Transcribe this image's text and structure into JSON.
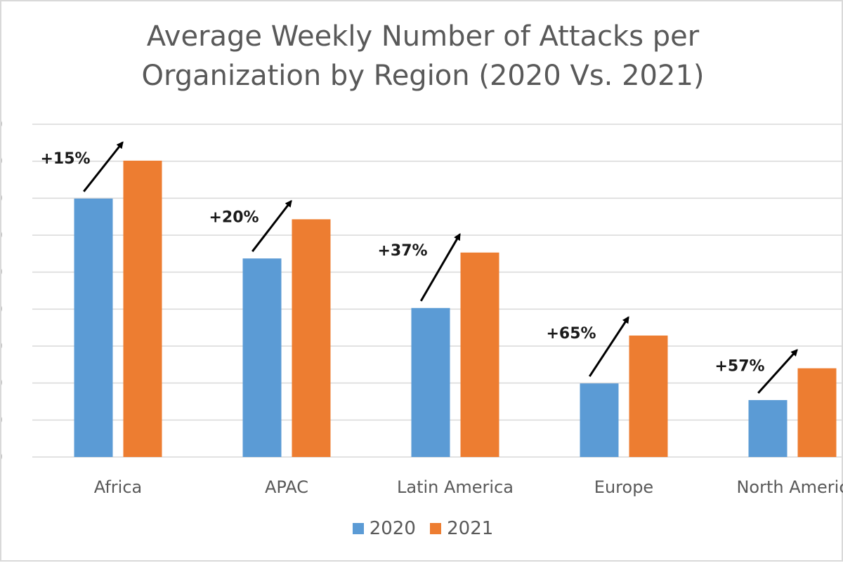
{
  "colors": {
    "series_2020": "#5b9bd5",
    "series_2021": "#ed7d31",
    "gridline": "#d9d9d9",
    "arrow": "#000000"
  },
  "chart_data": {
    "type": "bar",
    "title_lines": [
      "Average Weekly Number of Attacks per",
      "Organization by Region (2020 Vs. 2021)"
    ],
    "xlabel": "",
    "ylabel": "",
    "ylim": [
      0,
      1800
    ],
    "ytick_step": 200,
    "grid": true,
    "legend_position": "bottom",
    "categories": [
      "Africa",
      "APAC",
      "Latin America",
      "Europe",
      "North Americ"
    ],
    "series": [
      {
        "name": "2020",
        "values": [
          1398,
          1074,
          806,
          398,
          308
        ]
      },
      {
        "name": "2021",
        "values": [
          1603,
          1286,
          1106,
          657,
          480
        ]
      }
    ],
    "annotations": [
      "+15%",
      "+20%",
      "+37%",
      "+65%",
      "+57%"
    ]
  }
}
